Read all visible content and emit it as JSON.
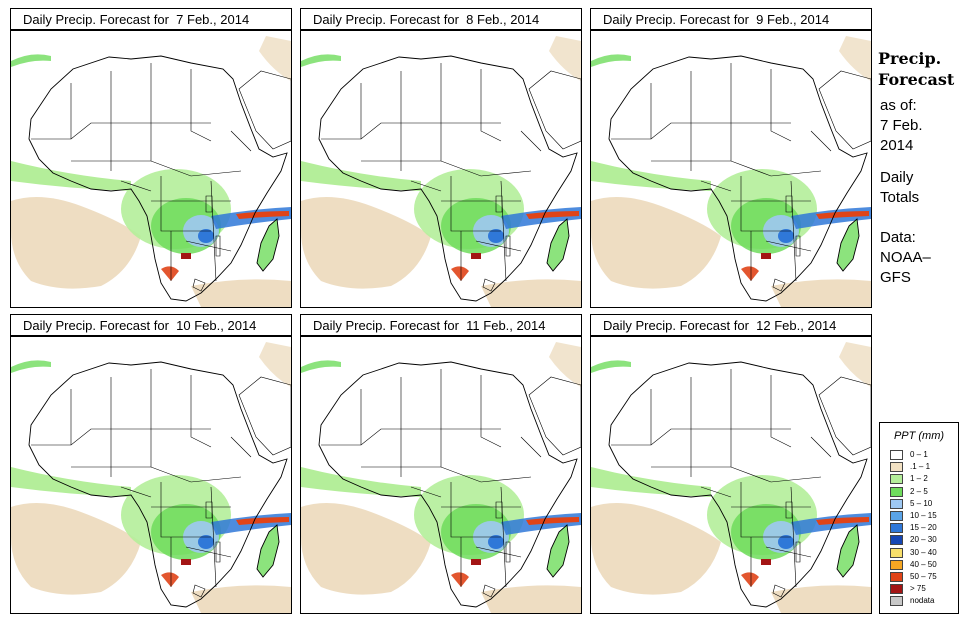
{
  "panels": [
    {
      "title_prefix": "Daily Precip. Forecast for",
      "date": "7 Feb., 2014"
    },
    {
      "title_prefix": "Daily Precip. Forecast for",
      "date": "8 Feb., 2014"
    },
    {
      "title_prefix": "Daily Precip. Forecast for",
      "date": "9 Feb., 2014"
    },
    {
      "title_prefix": "Daily Precip. Forecast for",
      "date": "10 Feb., 2014"
    },
    {
      "title_prefix": "Daily Precip. Forecast for",
      "date": "11 Feb., 2014"
    },
    {
      "title_prefix": "Daily Precip. Forecast for",
      "date": "12 Feb., 2014"
    }
  ],
  "side": {
    "title_line1": "Precip.",
    "title_line2": "Forecast",
    "asof_label": "as of:",
    "asof_date_line1": "7 Feb.",
    "asof_date_line2": "2014",
    "totals_line1": "Daily",
    "totals_line2": "Totals",
    "data_label": "Data:",
    "data_source_line1": "NOAA–",
    "data_source_line2": "GFS"
  },
  "legend": {
    "title": "PPT (mm)",
    "items": [
      {
        "label": "0 – 1",
        "color": "#ffffff"
      },
      {
        "label": ".1 – 1",
        "color": "#f2e1c3"
      },
      {
        "label": "1 – 2",
        "color": "#b4ee9a"
      },
      {
        "label": "2 – 5",
        "color": "#6fdc5c"
      },
      {
        "label": "5 – 10",
        "color": "#9ec8f2"
      },
      {
        "label": "10 – 15",
        "color": "#5aa4e8"
      },
      {
        "label": "15 – 20",
        "color": "#2f78d8"
      },
      {
        "label": "20 – 30",
        "color": "#1546b4"
      },
      {
        "label": "30 – 40",
        "color": "#f8df6a"
      },
      {
        "label": "40 – 50",
        "color": "#f5a623"
      },
      {
        "label": "50 – 75",
        "color": "#e04418"
      },
      {
        "label": "> 75",
        "color": "#a31515"
      },
      {
        "label": "nodata",
        "color": "#c8c8c8"
      }
    ]
  },
  "colors": {
    "tan": "#e8d2ad",
    "lightgreen": "#b4ee9a",
    "green": "#6fdc5c",
    "lightblue": "#9ec8f2",
    "blue": "#2f78d8",
    "red": "#e04418",
    "darkred": "#a31515"
  }
}
